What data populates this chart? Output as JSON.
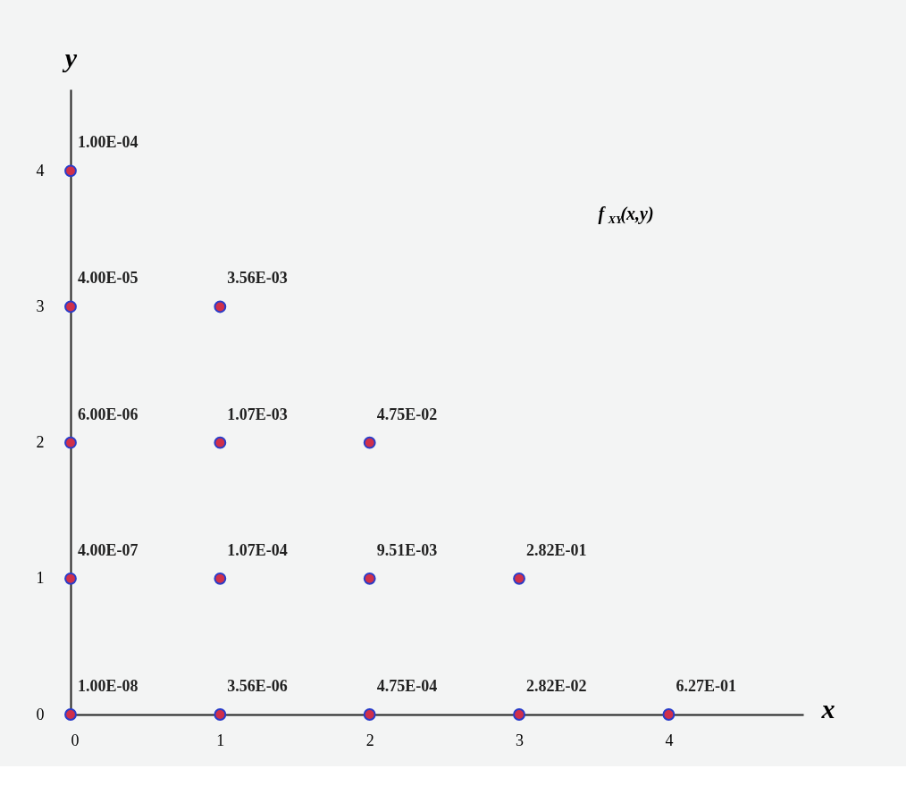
{
  "chart_data": {
    "type": "scatter",
    "xlabel": "x",
    "ylabel": "y",
    "xlim": [
      0,
      4.9
    ],
    "ylim": [
      0,
      4.6
    ],
    "xticks": [
      0,
      1,
      2,
      3,
      4
    ],
    "yticks": [
      0,
      1,
      2,
      3,
      4
    ],
    "grid": false,
    "marker": "circle",
    "annotations": [
      "f$_{XY}$(x,y)",
      {
        "text": "1.00E-08",
        "x": 0,
        "y": 0
      },
      {
        "text": "4.00E-07",
        "x": 0,
        "y": 1
      },
      {
        "text": "6.00E-06",
        "x": 0,
        "y": 2
      },
      {
        "text": "4.00E-05",
        "x": 0,
        "y": 3
      },
      {
        "text": "1.00E-04",
        "x": 0,
        "y": 4
      },
      {
        "text": "3.56E-06",
        "x": 1,
        "y": 0
      },
      {
        "text": "1.07E-04",
        "x": 1,
        "y": 1
      },
      {
        "text": "1.07E-03",
        "x": 1,
        "y": 2
      },
      {
        "text": "3.56E-03",
        "x": 1,
        "y": 3
      },
      {
        "text": "4.75E-04",
        "x": 2,
        "y": 0
      },
      {
        "text": "9.51E-03",
        "x": 2,
        "y": 1
      },
      {
        "text": "4.75E-02",
        "x": 2,
        "y": 2
      },
      {
        "text": "2.82E-02",
        "x": 3,
        "y": 0
      },
      {
        "text": "2.82E-01",
        "x": 3,
        "y": 1
      },
      {
        "text": "6.27E-01",
        "x": 4,
        "y": 0
      }
    ],
    "series": [
      {
        "color": "#d0304a",
        "x": [
          0,
          0,
          0,
          0,
          0,
          1,
          1,
          1,
          1,
          2,
          2,
          2,
          3,
          3,
          4
        ],
        "values": [
          0,
          1,
          2,
          3,
          4,
          0,
          1,
          2,
          3,
          0,
          1,
          2,
          0,
          1,
          0
        ]
      }
    ]
  }
}
